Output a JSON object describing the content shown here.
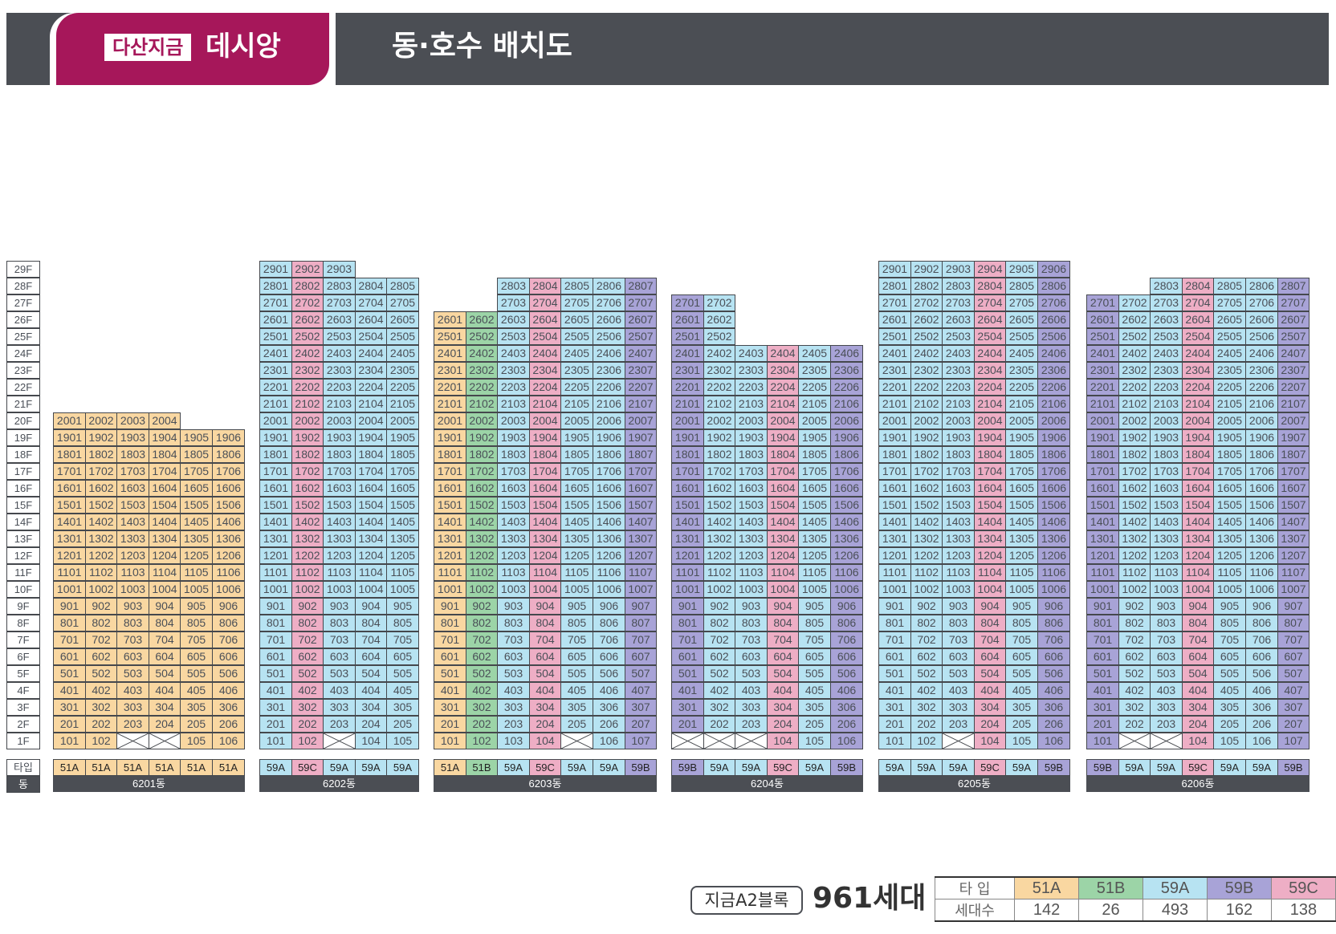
{
  "header": {
    "brand_sub": "다산지금",
    "brand_main": "데시앙",
    "title": "동·호수 배치도"
  },
  "colors": {
    "51A": "#f9d7a1",
    "51B": "#9cd4a7",
    "59A": "#b7e3f2",
    "59B": "#a8a3d7",
    "59C": "#eeaec5",
    "header": "#4b4e54",
    "brand": "#a6175a"
  },
  "row_labels": {
    "type": "타입",
    "dong": "동"
  },
  "floors": [
    "1F",
    "2F",
    "3F",
    "4F",
    "5F",
    "6F",
    "7F",
    "8F",
    "9F",
    "10F",
    "11F",
    "12F",
    "13F",
    "14F",
    "15F",
    "16F",
    "17F",
    "18F",
    "19F",
    "20F",
    "21F",
    "22F",
    "23F",
    "24F",
    "25F",
    "26F",
    "27F",
    "28F",
    "29F"
  ],
  "buildings": [
    {
      "name": "6201동",
      "types": [
        "51A",
        "51A",
        "51A",
        "51A",
        "51A",
        "51A"
      ],
      "tops": [
        20,
        20,
        20,
        20,
        19,
        19
      ],
      "missing": [
        "103",
        "104"
      ]
    },
    {
      "name": "6202동",
      "types": [
        "59A",
        "59C",
        "59A",
        "59A",
        "59A"
      ],
      "tops": [
        29,
        29,
        29,
        28,
        28
      ],
      "missing": [
        "103"
      ]
    },
    {
      "name": "6203동",
      "types": [
        "51A",
        "51B",
        "59A",
        "59C",
        "59A",
        "59A",
        "59B"
      ],
      "tops": [
        26,
        26,
        28,
        28,
        28,
        28,
        28
      ],
      "missing": [
        "105"
      ]
    },
    {
      "name": "6204동",
      "types": [
        "59B",
        "59A",
        "59A",
        "59C",
        "59A",
        "59B"
      ],
      "tops": [
        27,
        27,
        24,
        24,
        24,
        24
      ],
      "missing": [
        "101",
        "102",
        "103"
      ]
    },
    {
      "name": "6205동",
      "types": [
        "59A",
        "59A",
        "59A",
        "59C",
        "59A",
        "59B"
      ],
      "tops": [
        29,
        29,
        29,
        29,
        29,
        29
      ],
      "missing": [
        "103"
      ]
    },
    {
      "name": "6206동",
      "types": [
        "59B",
        "59A",
        "59A",
        "59C",
        "59A",
        "59A",
        "59B"
      ],
      "tops": [
        27,
        27,
        28,
        28,
        28,
        28,
        28
      ],
      "missing": [
        "102",
        "103"
      ]
    }
  ],
  "summary": {
    "block": "지금A2블록",
    "total": "961세대",
    "legend_header_type": "타  입",
    "legend_header_count": "세대수",
    "types": [
      "51A",
      "51B",
      "59A",
      "59B",
      "59C"
    ],
    "counts": [
      "142",
      "26",
      "493",
      "162",
      "138"
    ]
  }
}
